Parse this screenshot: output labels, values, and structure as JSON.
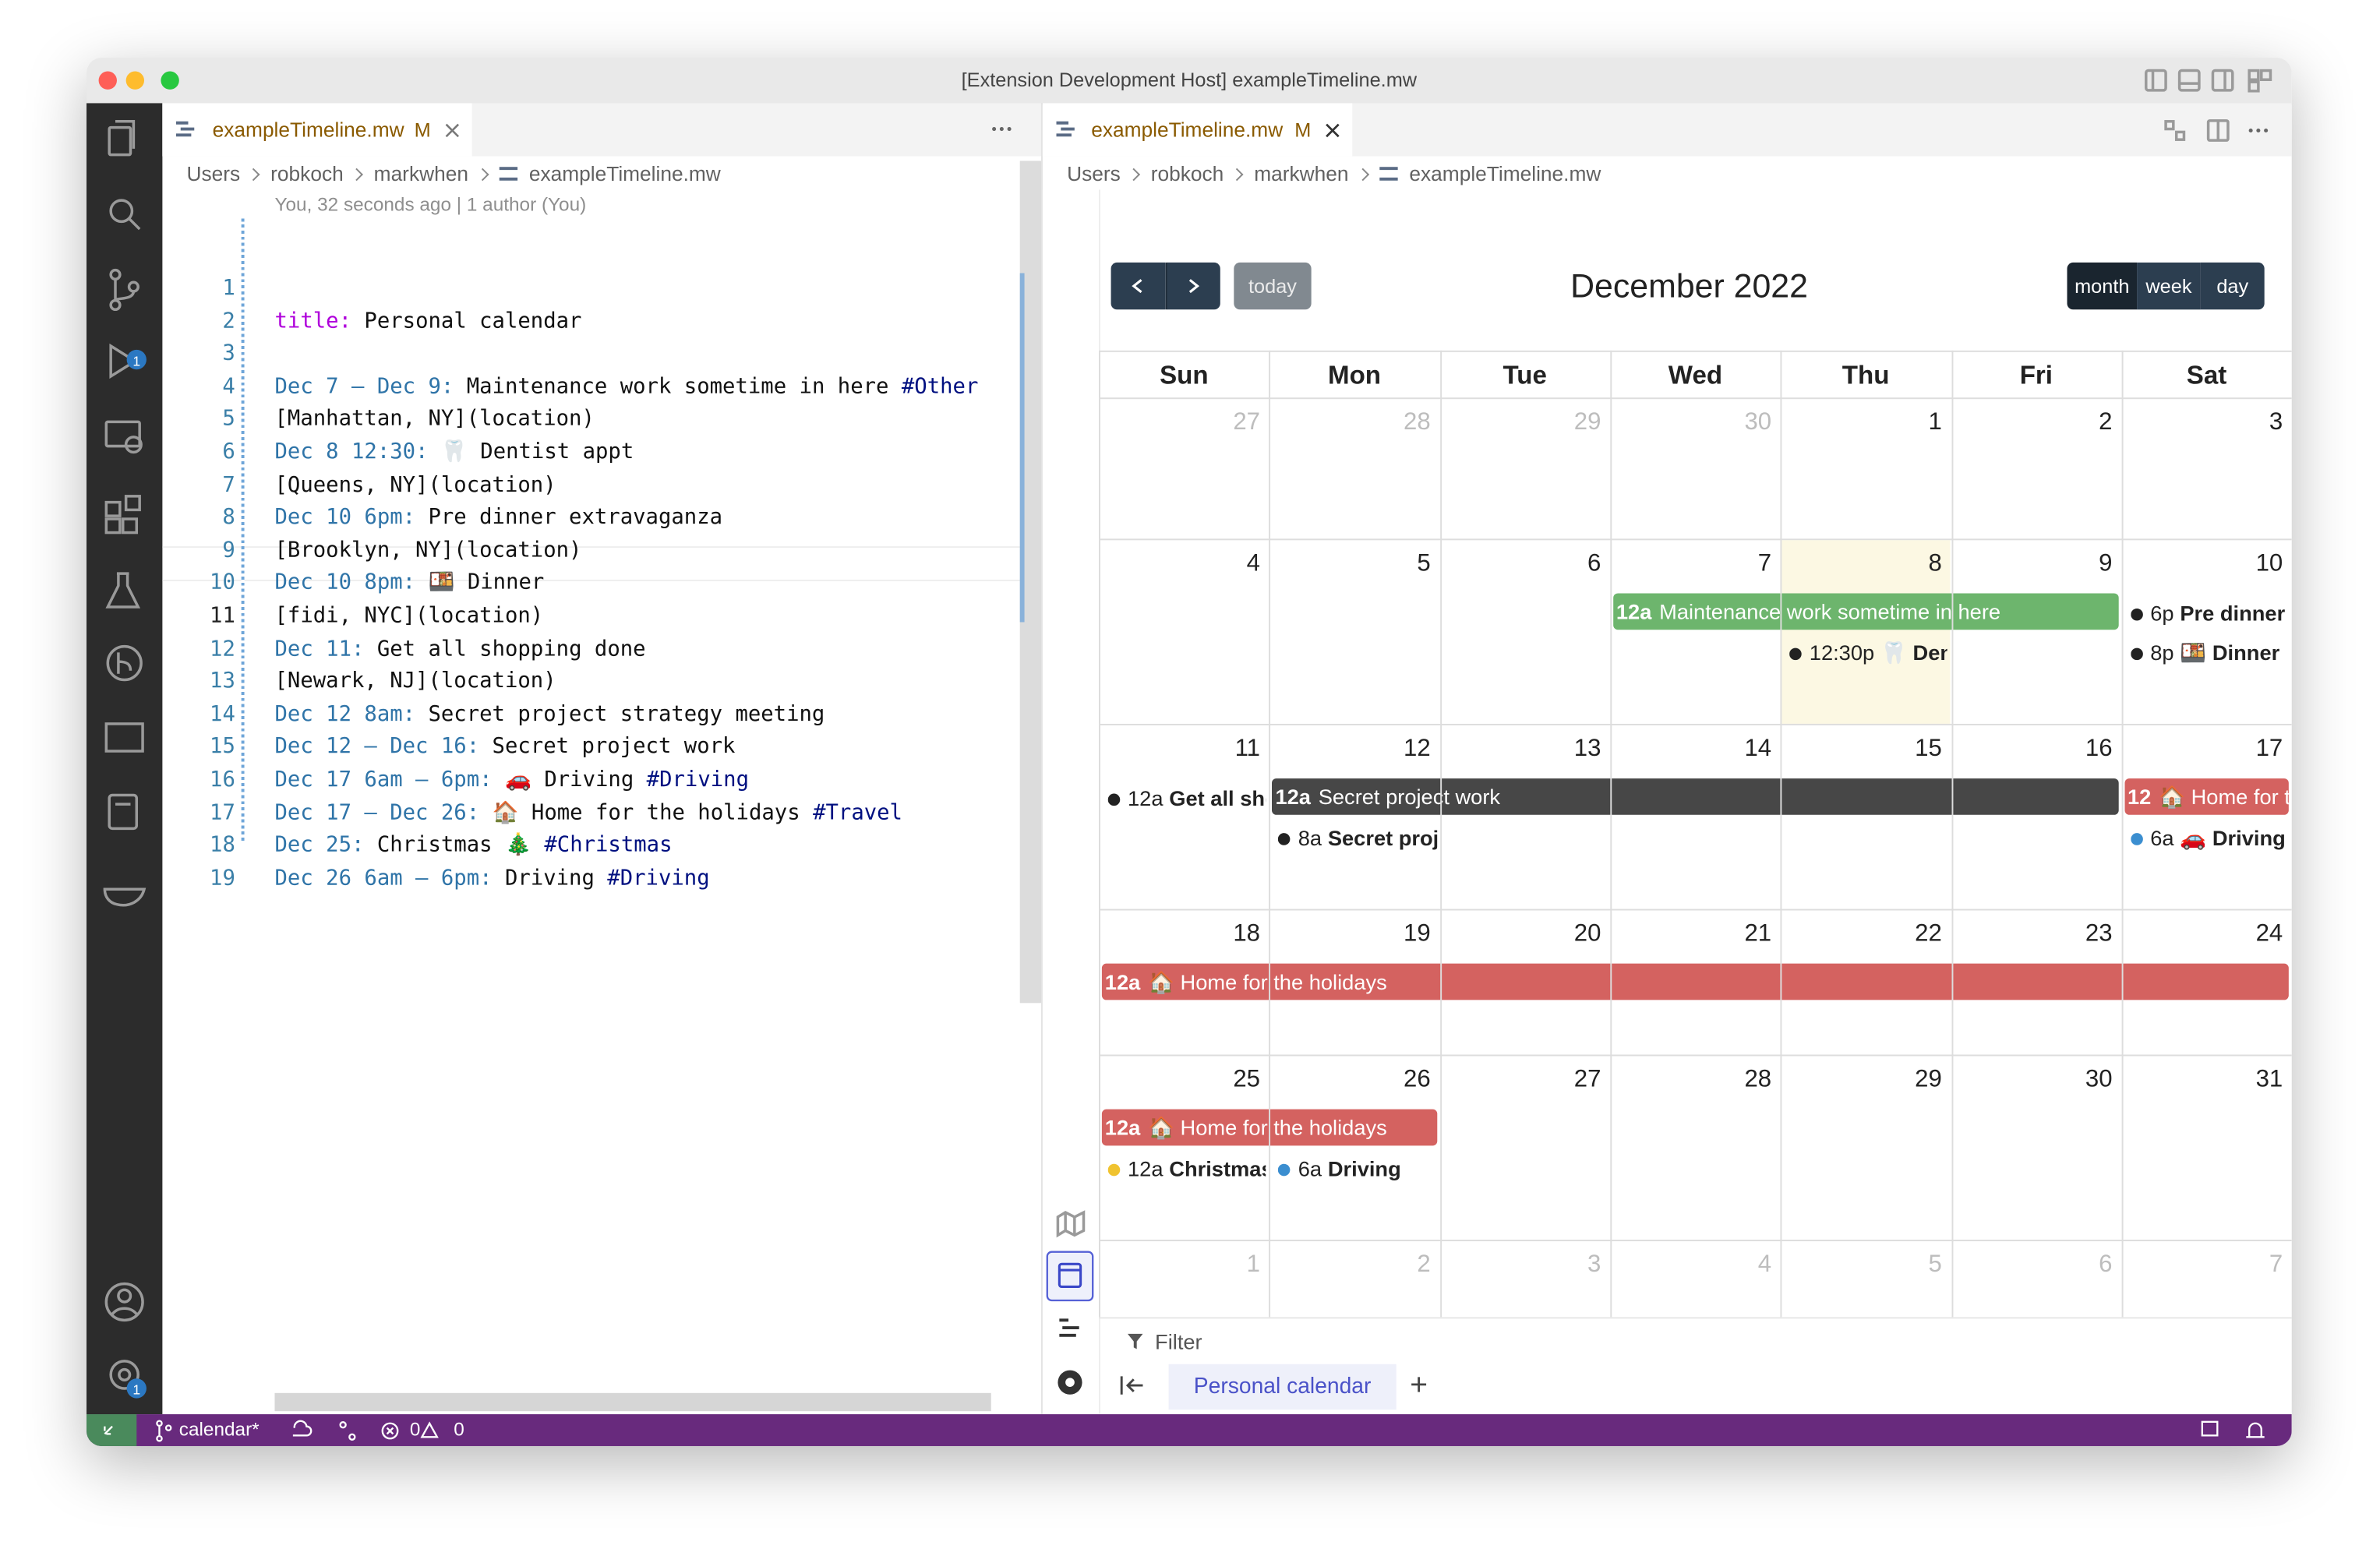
{
  "window": {
    "title": "[Extension Development Host] exampleTimeline.mw"
  },
  "activity_bar": {
    "source_control_badge": "1",
    "settings_badge": "1"
  },
  "left_editor": {
    "tab": {
      "name": "exampleTimeline.mw",
      "status": "M"
    },
    "breadcrumbs": [
      "Users",
      "robkoch",
      "markwhen",
      "exampleTimeline.mw"
    ],
    "blame": "You, 32 seconds ago | 1 author (You)",
    "lines": [
      {
        "number": "1",
        "tokens": []
      },
      {
        "number": "2",
        "tokens": [
          {
            "text": "title:",
            "color": "#af00db"
          },
          {
            "text": " Personal calendar"
          }
        ]
      },
      {
        "number": "3",
        "tokens": []
      },
      {
        "number": "4",
        "tokens": [
          {
            "text": "Dec 7 – Dec 9:",
            "color": "#2f74a8"
          },
          {
            "text": " Maintenance work sometime in here "
          },
          {
            "text": "#Other",
            "color": "#001080"
          }
        ]
      },
      {
        "number": "5",
        "tokens": [
          {
            "text": "[Manhattan, NY](location)"
          }
        ]
      },
      {
        "number": "6",
        "tokens": [
          {
            "text": "Dec 8 12:30:",
            "color": "#2f74a8"
          },
          {
            "text": " 🦷 Dentist appt"
          }
        ]
      },
      {
        "number": "7",
        "tokens": [
          {
            "text": "[Queens, NY](location)"
          }
        ]
      },
      {
        "number": "8",
        "tokens": [
          {
            "text": "Dec 10 6pm:",
            "color": "#2f74a8"
          },
          {
            "text": " Pre dinner extravaganza"
          }
        ]
      },
      {
        "number": "9",
        "tokens": [
          {
            "text": "[Brooklyn, NY](location)"
          }
        ]
      },
      {
        "number": "10",
        "tokens": [
          {
            "text": "Dec 10 8pm:",
            "color": "#2f74a8"
          },
          {
            "text": " 🍱 Dinner"
          }
        ]
      },
      {
        "number": "11",
        "tokens": [
          {
            "text": "[fidi, NYC](location)"
          }
        ]
      },
      {
        "number": "12",
        "tokens": [
          {
            "text": "Dec 11:",
            "color": "#2f74a8"
          },
          {
            "text": " Get all shopping done"
          }
        ]
      },
      {
        "number": "13",
        "tokens": [
          {
            "text": "[Newark, NJ](location)"
          }
        ]
      },
      {
        "number": "14",
        "tokens": [
          {
            "text": "Dec 12 8am:",
            "color": "#2f74a8"
          },
          {
            "text": " Secret project strategy meeting"
          }
        ]
      },
      {
        "number": "15",
        "tokens": [
          {
            "text": "Dec 12 – Dec 16:",
            "color": "#2f74a8"
          },
          {
            "text": " Secret project work"
          }
        ]
      },
      {
        "number": "16",
        "tokens": [
          {
            "text": "Dec 17 6am – 6pm:",
            "color": "#2f74a8"
          },
          {
            "text": " 🚗 Driving "
          },
          {
            "text": "#Driving",
            "color": "#001080"
          }
        ]
      },
      {
        "number": "17",
        "tokens": [
          {
            "text": "Dec 17 – Dec 26:",
            "color": "#2f74a8"
          },
          {
            "text": " 🏠 Home for the holidays "
          },
          {
            "text": "#Travel",
            "color": "#001080"
          }
        ]
      },
      {
        "number": "18",
        "tokens": [
          {
            "text": "Dec 25:",
            "color": "#2f74a8"
          },
          {
            "text": " Christmas 🎄 "
          },
          {
            "text": "#Christmas",
            "color": "#001080"
          }
        ]
      },
      {
        "number": "19",
        "tokens": [
          {
            "text": "Dec 26 6am – 6pm:",
            "color": "#2f74a8"
          },
          {
            "text": " Driving "
          },
          {
            "text": "#Driving",
            "color": "#001080"
          }
        ]
      }
    ]
  },
  "right_panel": {
    "tab": {
      "name": "exampleTimeline.mw",
      "status": "M"
    },
    "breadcrumbs": [
      "Users",
      "robkoch",
      "markwhen",
      "exampleTimeline.mw"
    ],
    "calendar": {
      "today_button": "today",
      "title": "December 2022",
      "views": [
        "month",
        "week",
        "day"
      ],
      "active_view": "month",
      "weekdays": [
        "Sun",
        "Mon",
        "Tue",
        "Wed",
        "Thu",
        "Fri",
        "Sat"
      ],
      "today": 8,
      "weeks": [
        {
          "days": [
            {
              "n": "27",
              "other": true
            },
            {
              "n": "28",
              "other": true
            },
            {
              "n": "29",
              "other": true
            },
            {
              "n": "30",
              "other": true
            },
            {
              "n": "1"
            },
            {
              "n": "2"
            },
            {
              "n": "3"
            }
          ],
          "events": []
        },
        {
          "days": [
            {
              "n": "4"
            },
            {
              "n": "5"
            },
            {
              "n": "6"
            },
            {
              "n": "7"
            },
            {
              "n": "8"
            },
            {
              "n": "9"
            },
            {
              "n": "10"
            }
          ],
          "events": [
            {
              "kind": "bar",
              "days": [
                "7",
                "9"
              ],
              "time": "12a",
              "title": "Maintenance work sometime in here",
              "color": "#6db56d"
            },
            {
              "kind": "dot",
              "days": [
                "8"
              ],
              "time": "12:30p",
              "title": "🦷 Dentist appt",
              "color": "#222222"
            },
            {
              "kind": "dot",
              "days": [
                "10"
              ],
              "time": "6p",
              "title": "Pre dinner extravaganza",
              "color": "#222222"
            },
            {
              "kind": "dot",
              "days": [
                "10"
              ],
              "time": "8p",
              "title": "🍱 Dinner",
              "color": "#222222"
            }
          ]
        },
        {
          "days": [
            {
              "n": "11"
            },
            {
              "n": "12"
            },
            {
              "n": "13"
            },
            {
              "n": "14"
            },
            {
              "n": "15"
            },
            {
              "n": "16"
            },
            {
              "n": "17"
            }
          ],
          "events": [
            {
              "kind": "dot",
              "days": [
                "11"
              ],
              "time": "12a",
              "title": "Get all shopping done",
              "color": "#222222"
            },
            {
              "kind": "bar",
              "days": [
                "12",
                "16"
              ],
              "time": "12a",
              "title": "Secret project work",
              "color": "#474747"
            },
            {
              "kind": "bar",
              "days": [
                "17",
                "17"
              ],
              "time": "12",
              "title": "🏠 Home for the holidays",
              "color": "#d46260"
            },
            {
              "kind": "dot",
              "days": [
                "12"
              ],
              "time": "8a",
              "title": "Secret project strategy meeting",
              "color": "#222222"
            },
            {
              "kind": "dot",
              "days": [
                "17"
              ],
              "time": "6a",
              "title": "🚗 Driving",
              "color": "#3b8ed0"
            }
          ]
        },
        {
          "days": [
            {
              "n": "18"
            },
            {
              "n": "19"
            },
            {
              "n": "20"
            },
            {
              "n": "21"
            },
            {
              "n": "22"
            },
            {
              "n": "23"
            },
            {
              "n": "24"
            }
          ],
          "events": [
            {
              "kind": "bar",
              "days": [
                "18",
                "24"
              ],
              "time": "12a",
              "title": "🏠 Home for the holidays",
              "color": "#d46260"
            }
          ]
        },
        {
          "days": [
            {
              "n": "25"
            },
            {
              "n": "26"
            },
            {
              "n": "27"
            },
            {
              "n": "28"
            },
            {
              "n": "29"
            },
            {
              "n": "30"
            },
            {
              "n": "31"
            }
          ],
          "events": [
            {
              "kind": "bar",
              "days": [
                "25",
                "26"
              ],
              "time": "12a",
              "title": "🏠 Home for the holidays",
              "color": "#d46260"
            },
            {
              "kind": "dot",
              "days": [
                "25"
              ],
              "time": "12a",
              "title": "Christmas 🎄",
              "color": "#f0c330"
            },
            {
              "kind": "dot",
              "days": [
                "26"
              ],
              "time": "6a",
              "title": "Driving",
              "color": "#3b8ed0"
            }
          ]
        },
        {
          "days": [
            {
              "n": "1",
              "other": true
            },
            {
              "n": "2",
              "other": true
            },
            {
              "n": "3",
              "other": true
            },
            {
              "n": "4",
              "other": true
            },
            {
              "n": "5",
              "other": true
            },
            {
              "n": "6",
              "other": true
            },
            {
              "n": "7",
              "other": true
            }
          ],
          "events": []
        }
      ]
    },
    "footer": {
      "filter": "Filter",
      "tab": "Personal calendar",
      "add": "+"
    }
  },
  "status_bar": {
    "branch": "calendar*",
    "errors": "0",
    "warnings": "0"
  }
}
